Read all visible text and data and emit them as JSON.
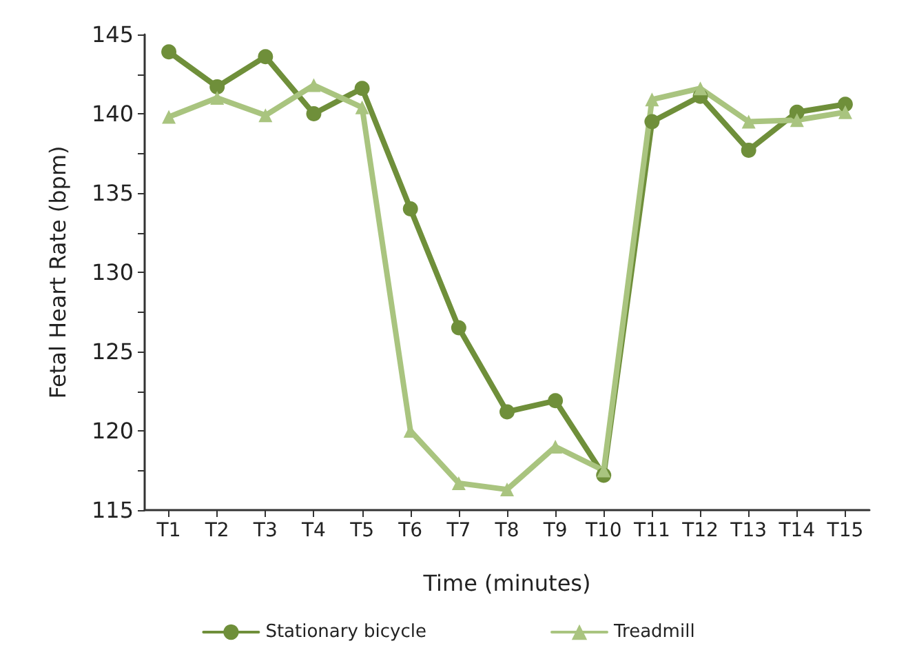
{
  "chart_data": {
    "type": "line",
    "xlabel": "Time (minutes)",
    "ylabel": "Fetal Heart Rate (bpm)",
    "categories": [
      "T1",
      "T2",
      "T3",
      "T4",
      "T5",
      "T6",
      "T7",
      "T8",
      "T9",
      "T10",
      "T11",
      "T12",
      "T13",
      "T14",
      "T15"
    ],
    "series": [
      {
        "name": "Stationary bicycle",
        "color": "#6f8f3a",
        "marker": "circle",
        "values": [
          143.9,
          141.7,
          143.6,
          140.0,
          141.6,
          134.0,
          126.5,
          121.2,
          121.9,
          117.2,
          139.5,
          141.1,
          137.7,
          140.1,
          140.6
        ]
      },
      {
        "name": "Treadmill",
        "color": "#a9c47f",
        "marker": "triangle",
        "values": [
          139.8,
          141.0,
          139.9,
          141.8,
          140.4,
          120.0,
          116.7,
          116.3,
          119.0,
          117.5,
          140.9,
          141.6,
          139.5,
          139.6,
          140.1
        ]
      }
    ],
    "ylim": [
      115,
      145
    ],
    "yticks": [
      115,
      {
        "value": 117.5,
        "label": null
      },
      120,
      {
        "value": 122.5,
        "label": null
      },
      125,
      {
        "value": 127.5,
        "label": null
      },
      130,
      {
        "value": 132.5,
        "label": null
      },
      135,
      {
        "value": 137.5,
        "label": null
      },
      140,
      {
        "value": 142.5,
        "label": null
      },
      145
    ],
    "grid": false,
    "legend": "bottom",
    "line_style": "solid"
  }
}
